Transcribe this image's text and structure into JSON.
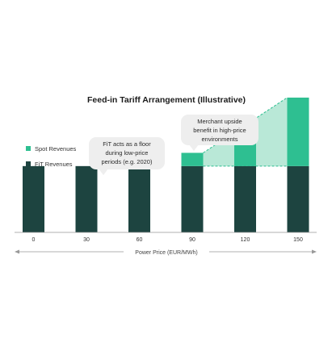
{
  "chart_data": {
    "type": "bar",
    "title": "Feed-in Tariff Arrangement (Illustrative)",
    "xlabel": "Power Price (EUR/MWh)",
    "ylabel": "",
    "categories": [
      "0",
      "30",
      "60",
      "90",
      "120",
      "150"
    ],
    "series": [
      {
        "name": "FiT Revenues",
        "values": [
          60,
          60,
          60,
          60,
          60,
          60
        ]
      },
      {
        "name": "Spot Revenues",
        "values": [
          0,
          0,
          0,
          12,
          37,
          62
        ]
      }
    ],
    "ylim": [
      0,
      130
    ],
    "grid": false,
    "legend_position": "left",
    "annotations": [
      {
        "lines": [
          "FiT acts as a floor",
          "during low-price",
          "periods (e.g. 2020)"
        ]
      },
      {
        "lines": [
          "Merchant upside",
          "benefit in high-price",
          "environments"
        ]
      }
    ],
    "colors": {
      "fit": "#1d4440",
      "spot": "#2ebf91",
      "upside_area": "#b9e8d7",
      "callout_bg": "#eeeeee",
      "axis": "#999999"
    }
  }
}
